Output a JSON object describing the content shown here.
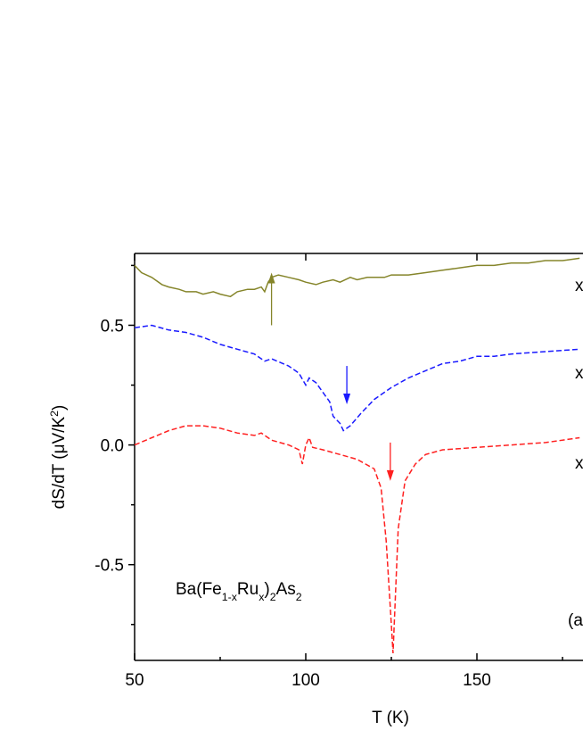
{
  "chart_data": {
    "type": "line",
    "xlabel": "T (K)",
    "ylabel": [
      {
        "text": "dS/dT ("
      },
      {
        "text": "μ"
      },
      {
        "text": "V/K"
      },
      {
        "text": "2",
        "sup": true
      },
      {
        "text": ")"
      }
    ],
    "compound": [
      {
        "text": "Ba(Fe"
      },
      {
        "text": "1-x",
        "sub": true
      },
      {
        "text": "Ru"
      },
      {
        "text": "x",
        "sub": true
      },
      {
        "text": ")"
      },
      {
        "text": "2",
        "sub": true
      },
      {
        "text": "As"
      },
      {
        "text": "2",
        "sub": true
      }
    ],
    "panel_label": "(a)",
    "xlim": [
      50,
      181
    ],
    "xticks": [
      50,
      100,
      150
    ],
    "xminorticks": [
      75,
      125,
      175
    ],
    "ylim": [
      -0.9,
      0.8
    ],
    "yticks": [
      0.5,
      {
        "value": 0,
        "label": "0.0"
      },
      -0.5
    ],
    "yminorticks": [
      -0.75,
      -0.25,
      0.25,
      0.75
    ],
    "series": [
      {
        "name": "x",
        "color": "#85852a",
        "dashed": false,
        "x": [
          50,
          52,
          55,
          58,
          60,
          63,
          65,
          68,
          70,
          73,
          75,
          78,
          80,
          83,
          85,
          87,
          88,
          89,
          90,
          92,
          95,
          98,
          100,
          103,
          105,
          108,
          110,
          113,
          115,
          118,
          120,
          123,
          125,
          130,
          135,
          140,
          145,
          150,
          155,
          160,
          165,
          170,
          175,
          180
        ],
        "values": [
          0.75,
          0.72,
          0.7,
          0.67,
          0.66,
          0.65,
          0.64,
          0.64,
          0.63,
          0.64,
          0.63,
          0.62,
          0.64,
          0.65,
          0.65,
          0.66,
          0.64,
          0.68,
          0.7,
          0.71,
          0.7,
          0.69,
          0.68,
          0.67,
          0.68,
          0.69,
          0.68,
          0.7,
          0.69,
          0.7,
          0.7,
          0.7,
          0.71,
          0.71,
          0.72,
          0.73,
          0.74,
          0.75,
          0.75,
          0.76,
          0.76,
          0.77,
          0.77,
          0.78
        ]
      },
      {
        "name": "x",
        "color": "#1a1aff",
        "dashed": true,
        "x": [
          50,
          55,
          60,
          65,
          70,
          75,
          80,
          85,
          88,
          90,
          95,
          98,
          100,
          101,
          103,
          105,
          107,
          108,
          110,
          111,
          113,
          116,
          120,
          125,
          130,
          135,
          140,
          145,
          150,
          155,
          160,
          170,
          180
        ],
        "values": [
          0.49,
          0.5,
          0.48,
          0.47,
          0.45,
          0.42,
          0.4,
          0.38,
          0.35,
          0.36,
          0.33,
          0.3,
          0.25,
          0.28,
          0.26,
          0.22,
          0.18,
          0.12,
          0.09,
          0.06,
          0.08,
          0.13,
          0.19,
          0.24,
          0.28,
          0.31,
          0.34,
          0.35,
          0.37,
          0.37,
          0.38,
          0.39,
          0.4
        ]
      },
      {
        "name": "x",
        "color": "#ff2020",
        "dashed": true,
        "x": [
          50,
          55,
          60,
          65,
          70,
          75,
          80,
          85,
          87,
          90,
          95,
          98,
          99,
          100,
          101,
          102,
          105,
          110,
          115,
          120,
          122,
          123.5,
          125,
          125.5,
          126,
          127,
          129,
          132,
          135,
          140,
          150,
          160,
          170,
          180
        ],
        "values": [
          0.0,
          0.03,
          0.06,
          0.08,
          0.08,
          0.07,
          0.05,
          0.04,
          0.05,
          0.02,
          0.0,
          -0.02,
          -0.08,
          0.0,
          0.03,
          -0.01,
          -0.02,
          -0.04,
          -0.06,
          -0.1,
          -0.18,
          -0.4,
          -0.75,
          -0.87,
          -0.7,
          -0.35,
          -0.15,
          -0.08,
          -0.04,
          -0.02,
          -0.01,
          0.0,
          0.01,
          0.03
        ]
      }
    ],
    "arrows": [
      {
        "x": 90,
        "y_from": 0.5,
        "y_to": 0.72,
        "color": "#85852a"
      },
      {
        "x": 112,
        "y_from": 0.33,
        "y_to": 0.17,
        "color": "#1a1aff"
      },
      {
        "x": 124.7,
        "y_from": 0.01,
        "y_to": -0.15,
        "color": "#ff2020"
      }
    ]
  }
}
